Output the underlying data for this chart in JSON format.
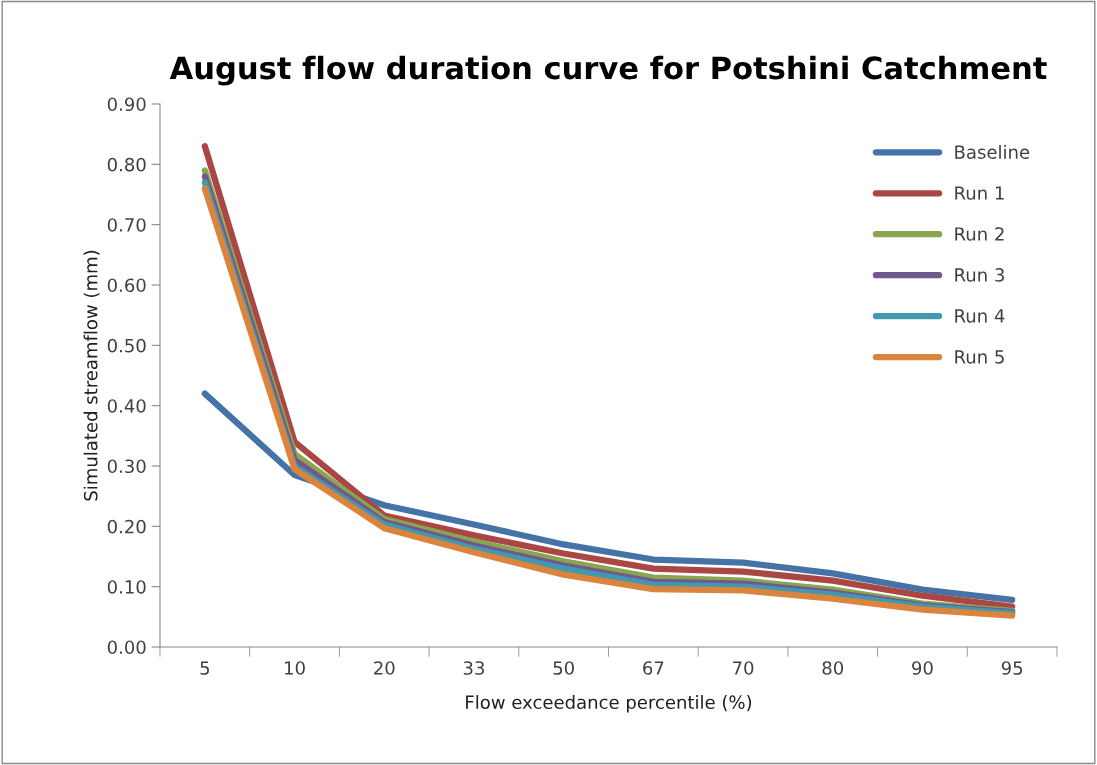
{
  "chart_data": {
    "type": "line",
    "title": "August flow duration curve for Potshini Catchment",
    "xlabel": "Flow exceedance percentile (%)",
    "ylabel": "Simulated streamflow (mm)",
    "categories": [
      "5",
      "10",
      "20",
      "33",
      "50",
      "67",
      "70",
      "80",
      "90",
      "95"
    ],
    "series": [
      {
        "name": "Baseline",
        "color": "#4572a7",
        "values": [
          0.42,
          0.285,
          0.235,
          0.203,
          0.17,
          0.145,
          0.14,
          0.122,
          0.095,
          0.078
        ]
      },
      {
        "name": "Run 1",
        "color": "#aa4643",
        "values": [
          0.83,
          0.34,
          0.218,
          0.185,
          0.155,
          0.13,
          0.125,
          0.11,
          0.085,
          0.067
        ]
      },
      {
        "name": "Run 2",
        "color": "#89a54e",
        "values": [
          0.79,
          0.32,
          0.212,
          0.175,
          0.142,
          0.115,
          0.11,
          0.095,
          0.072,
          0.06
        ]
      },
      {
        "name": "Run 3",
        "color": "#71588f",
        "values": [
          0.78,
          0.31,
          0.207,
          0.168,
          0.135,
          0.108,
          0.105,
          0.09,
          0.069,
          0.058
        ]
      },
      {
        "name": "Run 4",
        "color": "#4198af",
        "values": [
          0.77,
          0.3,
          0.203,
          0.163,
          0.13,
          0.103,
          0.1,
          0.087,
          0.067,
          0.056
        ]
      },
      {
        "name": "Run 5",
        "color": "#db843d",
        "values": [
          0.76,
          0.295,
          0.197,
          0.157,
          0.12,
          0.096,
          0.094,
          0.08,
          0.062,
          0.052
        ]
      }
    ],
    "ylim": [
      0,
      0.9
    ],
    "yticks": [
      {
        "value": 0,
        "label": "0.00"
      },
      {
        "value": 0.1,
        "label": "0.10"
      },
      {
        "value": 0.2,
        "label": "0.20"
      },
      {
        "value": 0.3,
        "label": "0.30"
      },
      {
        "value": 0.4,
        "label": "0.40"
      },
      {
        "value": 0.5,
        "label": "0.50"
      },
      {
        "value": 0.6,
        "label": "0.60"
      },
      {
        "value": 0.7,
        "label": "0.70"
      },
      {
        "value": 0.8,
        "label": "0.80"
      },
      {
        "value": 0.9,
        "label": "0.90"
      }
    ],
    "grid": false,
    "legend": "right",
    "marker": "none",
    "line_style": "solid"
  }
}
